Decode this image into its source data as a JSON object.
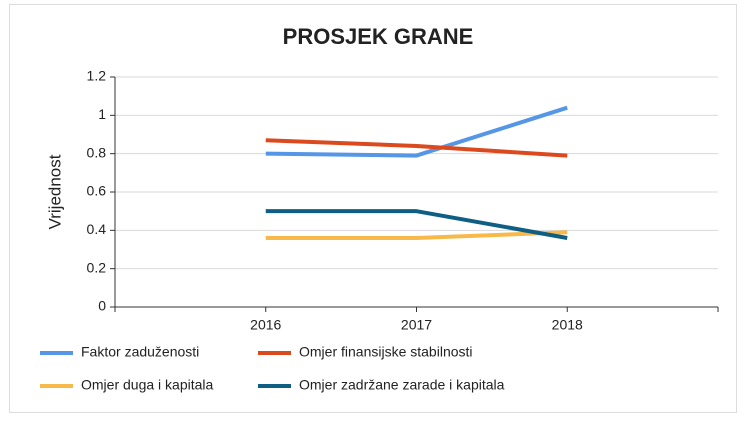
{
  "chart_data": {
    "type": "line",
    "title": "PROSJEK GRANE",
    "ylabel": "Vrijednost",
    "categories": [
      "2016",
      "2017",
      "2018"
    ],
    "series": [
      {
        "name": "Faktor zaduženosti",
        "color": "#5596e6",
        "values": [
          0.8,
          0.79,
          1.04
        ]
      },
      {
        "name": "Omjer finansijske stabilnosti",
        "color": "#db4a1e",
        "values": [
          0.87,
          0.84,
          0.79
        ]
      },
      {
        "name": "Omjer duga i kapitala",
        "color": "#f6b94a",
        "values": [
          0.36,
          0.36,
          0.39
        ]
      },
      {
        "name": "Omjer zadržane zarade i kapitala",
        "color": "#0f5f84",
        "values": [
          0.5,
          0.5,
          0.36
        ]
      }
    ],
    "ylim": [
      0,
      1.2
    ],
    "yticks": [
      0,
      0.2,
      0.4,
      0.6,
      0.8,
      1,
      1.2
    ],
    "grid": true,
    "legend": "bottom"
  }
}
